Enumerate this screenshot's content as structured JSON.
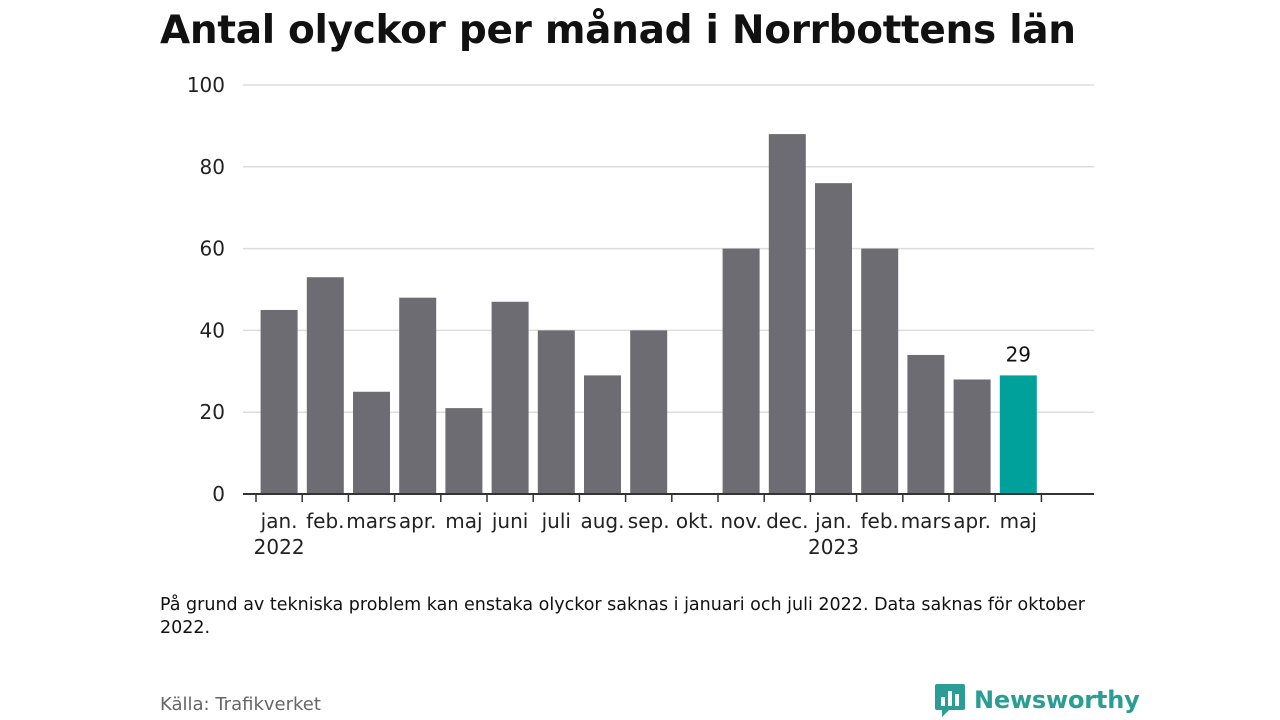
{
  "title": "Antal olyckor per månad i Norrbottens län",
  "note": "På grund av tekniska problem kan enstaka olyckor saknas i januari och juli 2022. Data saknas för oktober 2022.",
  "source": "Källa: Trafikverket",
  "brand": {
    "name": "Newsworthy",
    "icon": "newsworthy-logo-icon",
    "color": "#2a9d95"
  },
  "chart_data": {
    "type": "bar",
    "categories": [
      "jan.",
      "feb.",
      "mars",
      "apr.",
      "maj",
      "juni",
      "juli",
      "aug.",
      "sep.",
      "okt.",
      "nov.",
      "dec.",
      "jan.",
      "feb.",
      "mars",
      "apr.",
      "maj"
    ],
    "values": [
      45,
      53,
      25,
      48,
      21,
      47,
      40,
      29,
      40,
      null,
      60,
      88,
      76,
      60,
      34,
      28,
      29
    ],
    "year_labels": [
      {
        "category_index": 0,
        "label": "2022"
      },
      {
        "category_index": 12,
        "label": "2023"
      }
    ],
    "y_ticks": [
      0,
      20,
      40,
      60,
      80,
      100
    ],
    "ylim": [
      0,
      100
    ],
    "grid": true,
    "highlight_index": 16,
    "highlight_label": "29",
    "colors": {
      "bar": "#6d6c72",
      "highlight": "#00a19a",
      "grid": "#dddddd",
      "axis": "#333333"
    },
    "title": "",
    "xlabel": "",
    "ylabel": ""
  }
}
